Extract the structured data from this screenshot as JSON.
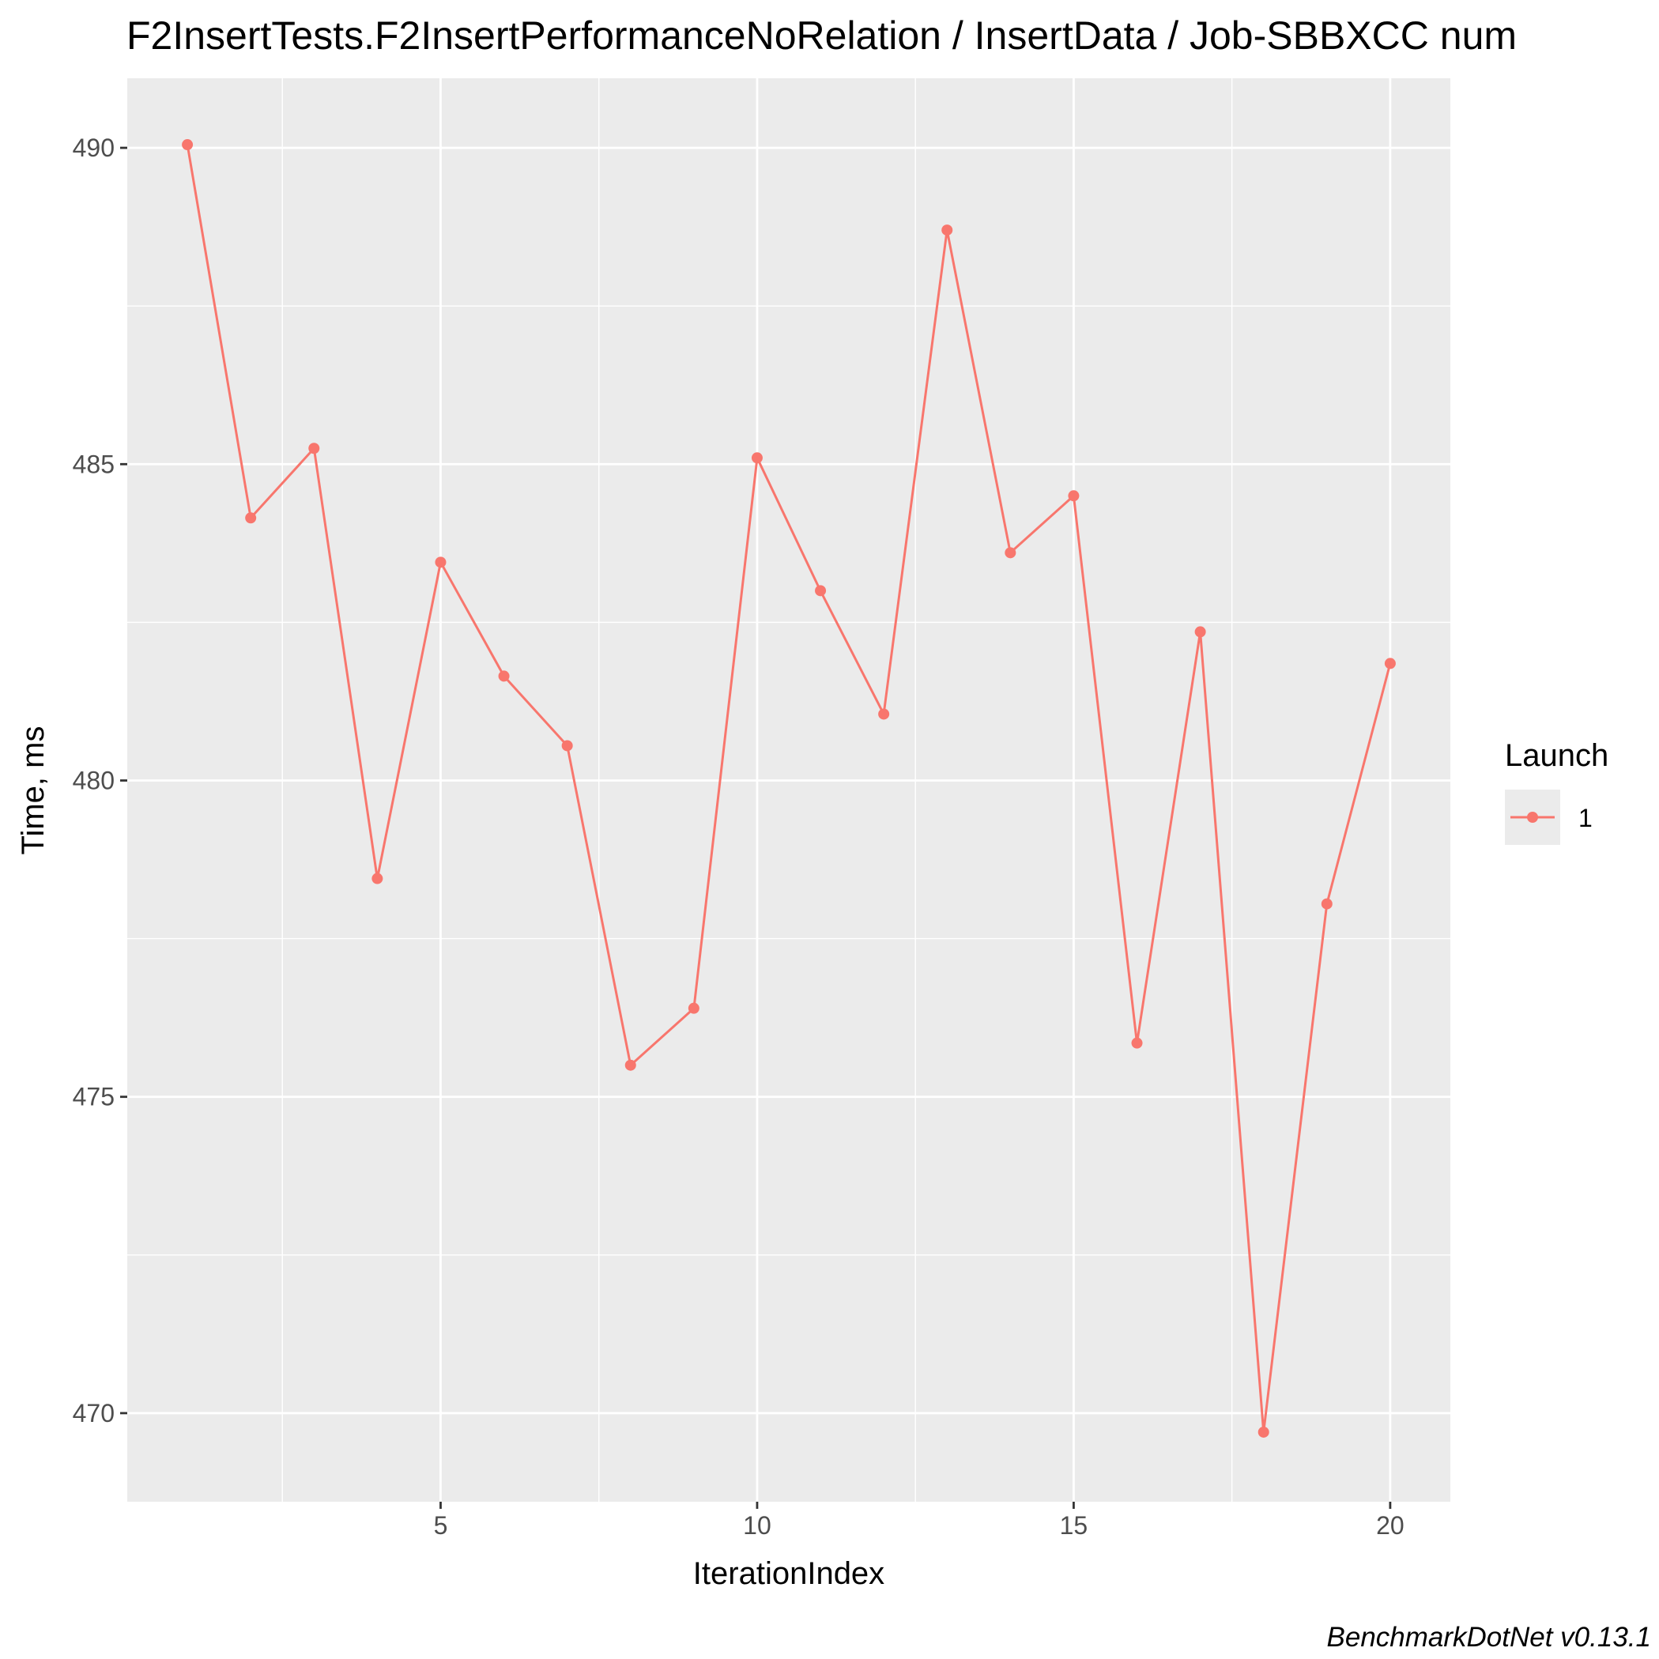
{
  "chart_data": {
    "type": "line",
    "title": "F2InsertTests.F2InsertPerformanceNoRelation / InsertData / Job-SBBXCC num",
    "xlabel": "IterationIndex",
    "ylabel": "Time, ms",
    "caption": "BenchmarkDotNet v0.13.1",
    "xlim": [
      0.05,
      20.95
    ],
    "ylim": [
      468.6,
      491.1
    ],
    "x_ticks": [
      5,
      10,
      15,
      20
    ],
    "y_ticks": [
      470,
      475,
      480,
      485,
      490
    ],
    "grid": true,
    "legend": {
      "title": "Launch",
      "position": "right"
    },
    "series": [
      {
        "name": "1",
        "color": "#F8766D",
        "x": [
          1,
          2,
          3,
          4,
          5,
          6,
          7,
          8,
          9,
          10,
          11,
          12,
          13,
          14,
          15,
          16,
          17,
          18,
          19,
          20
        ],
        "values": [
          490.05,
          484.15,
          485.25,
          478.45,
          483.45,
          481.65,
          480.55,
          475.5,
          476.4,
          485.1,
          483.0,
          481.05,
          488.7,
          483.6,
          484.5,
          475.85,
          482.35,
          469.7,
          478.05,
          481.85
        ]
      }
    ]
  }
}
